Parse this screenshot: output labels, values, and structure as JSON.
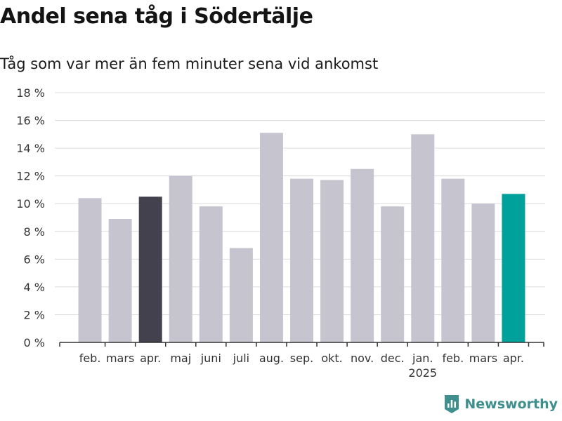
{
  "title": "Andel sena tåg i Södertälje",
  "subtitle": "Tåg som var mer än fem minuter sena vid ankomst",
  "brand": "Newsworthy",
  "colors": {
    "bar": "#c6c5cf",
    "highlight_previous": "#43414e",
    "highlight_current": "#00a19a",
    "grid": "#dcdcdc",
    "axis": "#333333",
    "brand": "#3f8f8e"
  },
  "chart_data": {
    "type": "bar",
    "ylim": [
      0,
      18
    ],
    "yticks": [
      0,
      2,
      4,
      6,
      8,
      10,
      12,
      14,
      16,
      18
    ],
    "ytick_labels": [
      "0 %",
      "2 %",
      "4 %",
      "6 %",
      "8 %",
      "10 %",
      "12 %",
      "14 %",
      "16 %",
      "18 %"
    ],
    "categories": [
      "feb.",
      "mars",
      "apr.",
      "maj",
      "juni",
      "juli",
      "aug.",
      "sep.",
      "okt.",
      "nov.",
      "dec.",
      "jan.",
      "feb.",
      "mars",
      "apr."
    ],
    "year_labels": [
      {
        "category_index": 11,
        "label": "2025"
      }
    ],
    "values": [
      10.4,
      8.9,
      10.5,
      12.0,
      9.8,
      6.8,
      15.1,
      11.8,
      11.7,
      12.5,
      9.8,
      15.0,
      11.8,
      10.0,
      10.7
    ],
    "bar_colors": [
      "bar",
      "bar",
      "highlight_previous",
      "bar",
      "bar",
      "bar",
      "bar",
      "bar",
      "bar",
      "bar",
      "bar",
      "bar",
      "bar",
      "bar",
      "highlight_current"
    ],
    "grid": true,
    "xlabel": "",
    "ylabel": ""
  }
}
